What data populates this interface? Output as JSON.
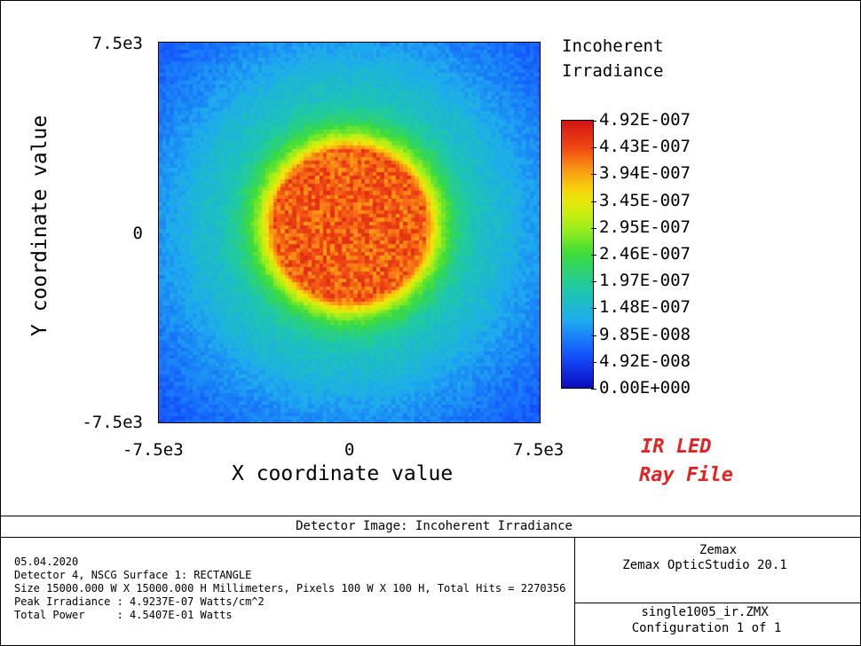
{
  "chart_data": {
    "type": "heatmap",
    "title": "Incoherent Irradiance",
    "legend_title": [
      "Incoherent",
      "Irradiance"
    ],
    "xlabel": "X coordinate value",
    "ylabel": "Y coordinate value",
    "xlim": [
      -7500,
      7500
    ],
    "ylim": [
      -7500,
      7500
    ],
    "x_ticks": [
      "-7.5e3",
      "0",
      "7.5e3"
    ],
    "y_ticks": [
      "7.5e3",
      "0",
      "-7.5e3"
    ],
    "grid": {
      "nx": 100,
      "ny": 100
    },
    "peak_value": 4.92e-07,
    "spot": {
      "center_x": 0,
      "center_y": 300,
      "plateau_radius": 3000,
      "edge_width": 900,
      "plateau_level": 0.88,
      "background_level": 0.28
    },
    "colorbar": {
      "min": 0,
      "max": 4.92e-07,
      "labels": [
        "4.92E-007",
        "4.43E-007",
        "3.94E-007",
        "3.45E-007",
        "2.95E-007",
        "2.46E-007",
        "1.97E-007",
        "1.48E-007",
        "9.85E-008",
        "4.92E-008",
        "0.00E+000"
      ]
    }
  },
  "annotation": {
    "lines": [
      "IR LED",
      "Ray File"
    ],
    "color": "#e32222"
  },
  "footer": {
    "title": "Detector Image: Incoherent Irradiance",
    "info_lines": [
      "05.04.2020",
      "Detector 4, NSCG Surface 1: RECTANGLE",
      "Size 15000.000 W X 15000.000 H Millimeters, Pixels 100 W X 100 H, Total Hits = 2270356",
      "Peak Irradiance : 4.9237E-07 Watts/cm^2",
      "Total Power     : 4.5407E-01 Watts"
    ],
    "company": "Zemax",
    "product": "Zemax OpticStudio 20.1",
    "file": "single1005_ir.ZMX",
    "configuration": "Configuration 1 of 1"
  }
}
